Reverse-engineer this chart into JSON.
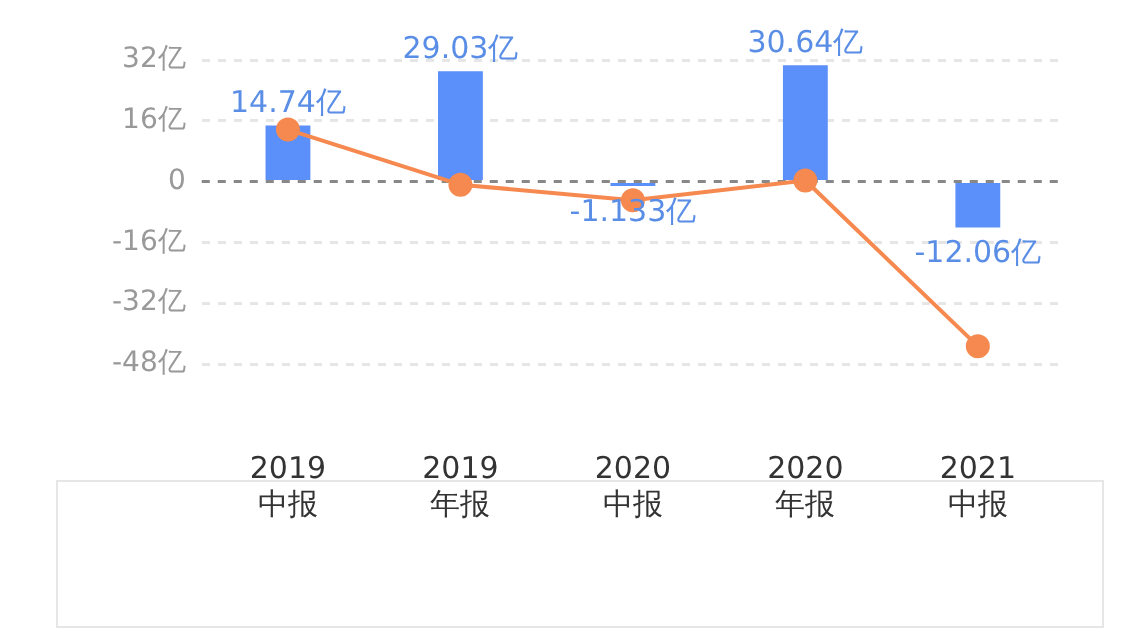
{
  "chart_data": {
    "type": "bar",
    "categories": [
      "2019 中报",
      "2019 年报",
      "2020 中报",
      "2020 年报",
      "2021 中报"
    ],
    "series": [
      {
        "color": "#5b8ff9",
        "values": [
          14.74,
          29.03,
          -1.133,
          30.64,
          -12.06
        ],
        "value_labels": [
          "14.74亿",
          "29.03亿",
          "-1.133亿",
          "30.64亿",
          "-12.06亿"
        ]
      },
      {
        "type": "line",
        "color": "#f5894f",
        "values": [
          13.7,
          -0.8,
          -4.9,
          0.3,
          -43.3
        ],
        "marker": "circle"
      }
    ],
    "ylim": [
      -48,
      32
    ],
    "ref_lines": [
      {
        "axis": "y",
        "value": 0,
        "color": "#888888",
        "line_style": "dashed"
      }
    ],
    "yticks": [
      {
        "value": -48,
        "label": "-48亿"
      },
      {
        "value": -32,
        "label": "-32亿"
      },
      {
        "value": -16,
        "label": "-16亿"
      },
      0,
      {
        "value": 16,
        "label": "16亿"
      },
      {
        "value": 32,
        "label": "32亿"
      }
    ],
    "grid": "y",
    "legend": false
  }
}
